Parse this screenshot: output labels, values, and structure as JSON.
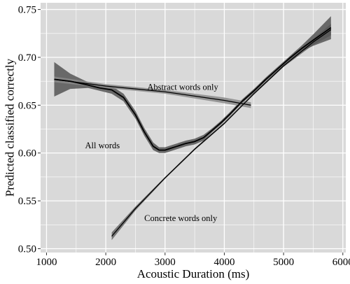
{
  "chart_data": {
    "type": "line",
    "title": "",
    "xlabel": "Acoustic Duration (ms)",
    "ylabel": "Predicted classified correctly",
    "xlim": [
      900,
      6050
    ],
    "ylim": [
      0.496,
      0.757
    ],
    "x_ticks": [
      1000,
      2000,
      3000,
      4000,
      5000,
      6000
    ],
    "x_tick_labels": [
      "1000",
      "2000",
      "3000",
      "4000",
      "5000",
      "6000"
    ],
    "y_ticks": [
      0.5,
      0.55,
      0.6,
      0.65,
      0.7,
      0.75
    ],
    "y_tick_labels": [
      "0.50",
      "0.55",
      "0.60",
      "0.65",
      "0.70",
      "0.75"
    ],
    "grid": true,
    "background": "#d9d9d9",
    "grid_color": "#ffffff",
    "series": [
      {
        "name": "All words",
        "color": "#000000",
        "band_color": "#555555",
        "x": [
          1130,
          1400,
          1700,
          1900,
          2100,
          2300,
          2500,
          2650,
          2800,
          2900,
          3000,
          3100,
          3200,
          3350,
          3500,
          3650,
          3800,
          3950,
          4100,
          4300,
          4500,
          4700,
          4900,
          5100,
          5300,
          5500,
          5800
        ],
        "y": [
          0.677,
          0.675,
          0.671,
          0.668,
          0.666,
          0.658,
          0.64,
          0.622,
          0.607,
          0.603,
          0.603,
          0.605,
          0.607,
          0.61,
          0.612,
          0.616,
          0.624,
          0.632,
          0.641,
          0.654,
          0.665,
          0.677,
          0.688,
          0.699,
          0.709,
          0.718,
          0.731
        ],
        "lower": [
          0.659,
          0.667,
          0.668,
          0.665,
          0.662,
          0.654,
          0.636,
          0.618,
          0.603,
          0.6,
          0.6,
          0.602,
          0.604,
          0.607,
          0.609,
          0.613,
          0.622,
          0.63,
          0.639,
          0.652,
          0.663,
          0.675,
          0.686,
          0.697,
          0.706,
          0.712,
          0.719
        ],
        "upper": [
          0.695,
          0.683,
          0.674,
          0.671,
          0.67,
          0.662,
          0.644,
          0.626,
          0.611,
          0.606,
          0.606,
          0.608,
          0.61,
          0.613,
          0.615,
          0.619,
          0.626,
          0.634,
          0.643,
          0.656,
          0.667,
          0.679,
          0.69,
          0.701,
          0.712,
          0.724,
          0.743
        ]
      },
      {
        "name": "Abstract words only",
        "color": "#000000",
        "band_color": "#8a8a8a",
        "x": [
          1130,
          2000,
          3000,
          4000,
          4450
        ],
        "y": [
          0.677,
          0.67,
          0.664,
          0.655,
          0.65
        ],
        "lower": [
          0.674,
          0.668,
          0.662,
          0.652,
          0.647
        ],
        "upper": [
          0.68,
          0.672,
          0.666,
          0.658,
          0.653
        ]
      },
      {
        "name": "Concrete words only",
        "color": "#000000",
        "band_color": "#666666",
        "x": [
          2100,
          2500,
          3000,
          3500,
          4000,
          4500,
          5000,
          5500,
          5800
        ],
        "y": [
          0.513,
          0.542,
          0.574,
          0.604,
          0.631,
          0.662,
          0.691,
          0.716,
          0.729
        ],
        "lower": [
          0.509,
          0.54,
          0.573,
          0.603,
          0.63,
          0.661,
          0.69,
          0.713,
          0.723
        ],
        "upper": [
          0.517,
          0.544,
          0.575,
          0.605,
          0.632,
          0.663,
          0.692,
          0.719,
          0.735
        ]
      }
    ],
    "annotations": [
      {
        "text": "Abstract words only",
        "x": 2700,
        "y": 0.666,
        "series": "Abstract words only"
      },
      {
        "text": "All words",
        "x": 1650,
        "y": 0.605,
        "series": "All words"
      },
      {
        "text": "Concrete words only",
        "x": 2650,
        "y": 0.529,
        "series": "Concrete words only"
      }
    ]
  }
}
